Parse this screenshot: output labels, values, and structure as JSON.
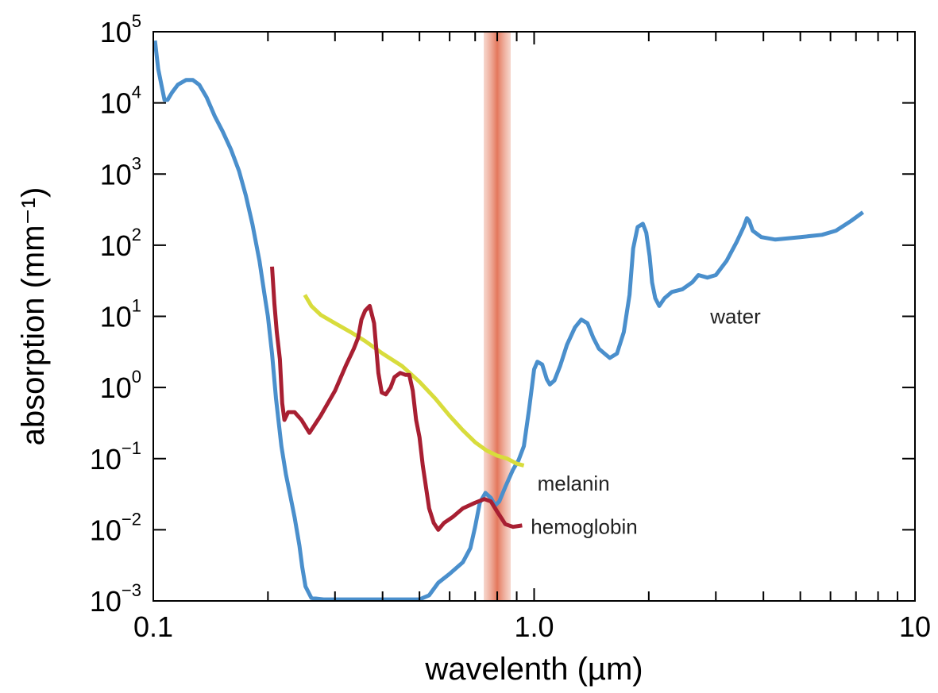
{
  "chart_data": {
    "type": "line",
    "xlabel": "wavelenth (µm)",
    "ylabel": "absorption (mm⁻¹)",
    "x_scale": "log",
    "y_scale": "log",
    "xlim": [
      0.1,
      10
    ],
    "ylim": [
      0.001,
      100000
    ],
    "grid": false,
    "x_ticks": [
      {
        "value": 0.1,
        "label": "0.1"
      },
      {
        "value": 1.0,
        "label": "1.0"
      },
      {
        "value": 10,
        "label": "10"
      }
    ],
    "y_ticks": [
      {
        "value": 0.001,
        "base": "10",
        "exp": "−3"
      },
      {
        "value": 0.01,
        "base": "10",
        "exp": "−2"
      },
      {
        "value": 0.1,
        "base": "10",
        "exp": "−1"
      },
      {
        "value": 1,
        "base": "10",
        "exp": "0"
      },
      {
        "value": 10,
        "base": "10",
        "exp": "1"
      },
      {
        "value": 100,
        "base": "10",
        "exp": "2"
      },
      {
        "value": 1000,
        "base": "10",
        "exp": "3"
      },
      {
        "value": 10000,
        "base": "10",
        "exp": "4"
      },
      {
        "value": 100000,
        "base": "10",
        "exp": "5"
      }
    ],
    "highlight_band": {
      "x_center": 0.8,
      "color": "#e8826a"
    },
    "series": [
      {
        "name": "water",
        "color": "#4a8fcc",
        "label_at": [
          2.9,
          10
        ],
        "points": [
          [
            0.101,
            75000
          ],
          [
            0.103,
            30000
          ],
          [
            0.105,
            18000
          ],
          [
            0.107,
            11000
          ],
          [
            0.109,
            11000
          ],
          [
            0.112,
            14000
          ],
          [
            0.116,
            18000
          ],
          [
            0.122,
            21000
          ],
          [
            0.127,
            21000
          ],
          [
            0.132,
            18000
          ],
          [
            0.138,
            12000
          ],
          [
            0.145,
            6500
          ],
          [
            0.152,
            4000
          ],
          [
            0.16,
            2200
          ],
          [
            0.168,
            1100
          ],
          [
            0.175,
            500
          ],
          [
            0.182,
            200
          ],
          [
            0.19,
            60
          ],
          [
            0.196,
            20
          ],
          [
            0.2,
            10
          ],
          [
            0.205,
            3
          ],
          [
            0.21,
            0.7
          ],
          [
            0.217,
            0.15
          ],
          [
            0.223,
            0.06
          ],
          [
            0.229,
            0.03
          ],
          [
            0.235,
            0.015
          ],
          [
            0.242,
            0.006
          ],
          [
            0.246,
            0.003
          ],
          [
            0.251,
            0.0016
          ],
          [
            0.26,
            0.0011
          ],
          [
            0.28,
            0.00105
          ],
          [
            0.32,
            0.00105
          ],
          [
            0.4,
            0.00105
          ],
          [
            0.5,
            0.00105
          ],
          [
            0.53,
            0.0012
          ],
          [
            0.56,
            0.0018
          ],
          [
            0.6,
            0.0024
          ],
          [
            0.65,
            0.0035
          ],
          [
            0.68,
            0.0055
          ],
          [
            0.7,
            0.011
          ],
          [
            0.72,
            0.024
          ],
          [
            0.745,
            0.033
          ],
          [
            0.77,
            0.028
          ],
          [
            0.79,
            0.022
          ],
          [
            0.81,
            0.025
          ],
          [
            0.84,
            0.04
          ],
          [
            0.88,
            0.07
          ],
          [
            0.91,
            0.095
          ],
          [
            0.94,
            0.15
          ],
          [
            0.97,
            0.5
          ],
          [
            1.0,
            1.8
          ],
          [
            1.02,
            2.3
          ],
          [
            1.05,
            2.1
          ],
          [
            1.08,
            1.3
          ],
          [
            1.1,
            1.1
          ],
          [
            1.13,
            1.25
          ],
          [
            1.17,
            2
          ],
          [
            1.22,
            4
          ],
          [
            1.28,
            7
          ],
          [
            1.33,
            9
          ],
          [
            1.38,
            8
          ],
          [
            1.43,
            5
          ],
          [
            1.48,
            3.5
          ],
          [
            1.53,
            3
          ],
          [
            1.58,
            2.6
          ],
          [
            1.65,
            3
          ],
          [
            1.72,
            6
          ],
          [
            1.78,
            20
          ],
          [
            1.82,
            90
          ],
          [
            1.87,
            180
          ],
          [
            1.93,
            200
          ],
          [
            1.97,
            150
          ],
          [
            2.01,
            70
          ],
          [
            2.04,
            30
          ],
          [
            2.08,
            18
          ],
          [
            2.13,
            14
          ],
          [
            2.2,
            18
          ],
          [
            2.3,
            22
          ],
          [
            2.45,
            24
          ],
          [
            2.6,
            30
          ],
          [
            2.7,
            38
          ],
          [
            2.85,
            35
          ],
          [
            3.0,
            38
          ],
          [
            3.2,
            60
          ],
          [
            3.4,
            110
          ],
          [
            3.55,
            180
          ],
          [
            3.62,
            240
          ],
          [
            3.67,
            220
          ],
          [
            3.75,
            160
          ],
          [
            3.95,
            130
          ],
          [
            4.3,
            120
          ],
          [
            5.0,
            130
          ],
          [
            5.7,
            140
          ],
          [
            6.2,
            160
          ],
          [
            6.8,
            220
          ],
          [
            7.3,
            290
          ]
        ]
      },
      {
        "name": "melanin",
        "color": "#d8dc3c",
        "label_at": [
          1.02,
          0.045
        ],
        "points": [
          [
            0.25,
            20
          ],
          [
            0.26,
            14
          ],
          [
            0.275,
            10.5
          ],
          [
            0.3,
            8
          ],
          [
            0.33,
            6
          ],
          [
            0.36,
            4.5
          ],
          [
            0.4,
            3
          ],
          [
            0.45,
            2
          ],
          [
            0.5,
            1.2
          ],
          [
            0.55,
            0.7
          ],
          [
            0.6,
            0.4
          ],
          [
            0.65,
            0.25
          ],
          [
            0.7,
            0.17
          ],
          [
            0.75,
            0.13
          ],
          [
            0.8,
            0.11
          ],
          [
            0.85,
            0.1
          ],
          [
            0.9,
            0.085
          ],
          [
            0.94,
            0.08
          ]
        ]
      },
      {
        "name": "hemoglobin",
        "color": "#a81f32",
        "label_at": [
          0.98,
          0.011
        ],
        "points": [
          [
            0.205,
            50
          ],
          [
            0.208,
            15
          ],
          [
            0.211,
            6
          ],
          [
            0.215,
            2.5
          ],
          [
            0.218,
            0.6
          ],
          [
            0.221,
            0.35
          ],
          [
            0.226,
            0.45
          ],
          [
            0.235,
            0.45
          ],
          [
            0.245,
            0.35
          ],
          [
            0.257,
            0.23
          ],
          [
            0.275,
            0.4
          ],
          [
            0.3,
            0.9
          ],
          [
            0.32,
            2
          ],
          [
            0.336,
            3.5
          ],
          [
            0.345,
            5
          ],
          [
            0.352,
            9
          ],
          [
            0.36,
            12
          ],
          [
            0.37,
            14
          ],
          [
            0.38,
            8
          ],
          [
            0.39,
            1.6
          ],
          [
            0.398,
            0.85
          ],
          [
            0.408,
            0.8
          ],
          [
            0.42,
            1
          ],
          [
            0.43,
            1.4
          ],
          [
            0.445,
            1.6
          ],
          [
            0.46,
            1.5
          ],
          [
            0.47,
            1.5
          ],
          [
            0.48,
            0.9
          ],
          [
            0.49,
            0.35
          ],
          [
            0.5,
            0.2
          ],
          [
            0.51,
            0.08
          ],
          [
            0.52,
            0.04
          ],
          [
            0.53,
            0.02
          ],
          [
            0.545,
            0.0125
          ],
          [
            0.56,
            0.01
          ],
          [
            0.58,
            0.0125
          ],
          [
            0.61,
            0.015
          ],
          [
            0.65,
            0.02
          ],
          [
            0.7,
            0.024
          ],
          [
            0.74,
            0.027
          ],
          [
            0.77,
            0.025
          ],
          [
            0.8,
            0.018
          ],
          [
            0.84,
            0.012
          ],
          [
            0.88,
            0.011
          ],
          [
            0.93,
            0.0115
          ]
        ]
      }
    ]
  }
}
